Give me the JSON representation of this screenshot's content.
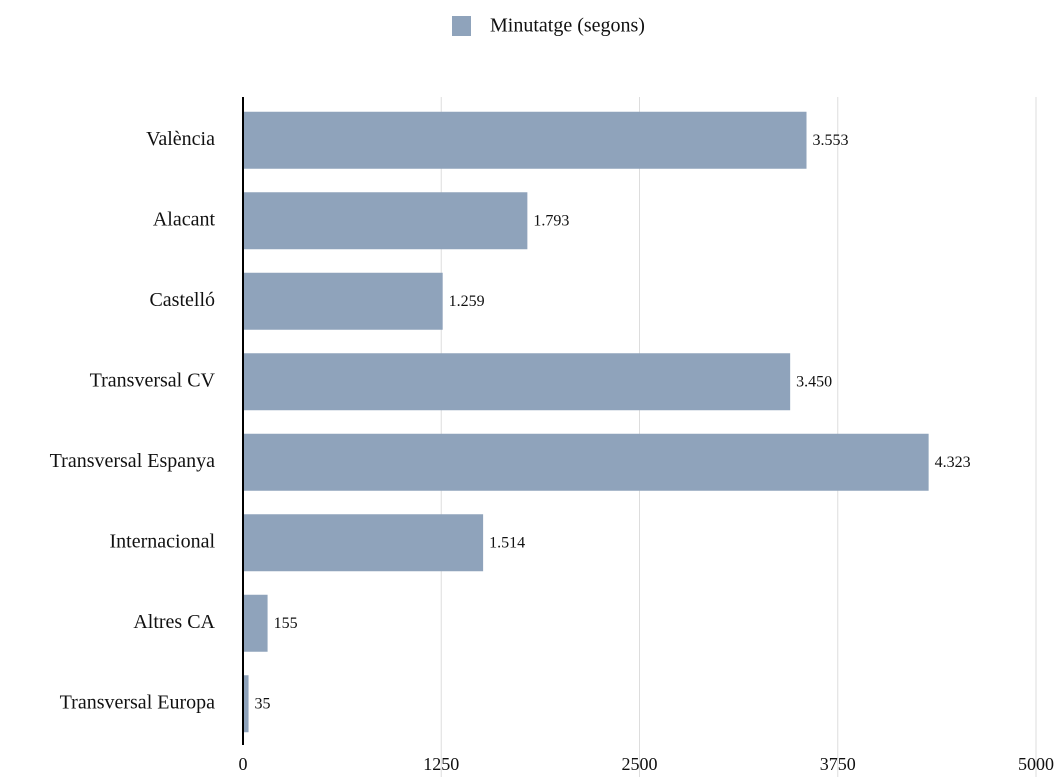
{
  "chart_data": {
    "type": "bar",
    "orientation": "horizontal",
    "categories": [
      "València",
      "Alacant",
      "Castelló",
      "Transversal CV",
      "Transversal Espanya",
      "Internacional",
      "Altres CA",
      "Transversal Europa"
    ],
    "series": [
      {
        "name": "Minutatge (segons)",
        "color": "#8fa3bb",
        "values": [
          3553,
          1793,
          1259,
          3450,
          4323,
          1514,
          155,
          35
        ],
        "value_labels": [
          "3.553",
          "1.793",
          "1.259",
          "3.450",
          "4.323",
          "1.514",
          "155",
          "35"
        ]
      }
    ],
    "xlim": [
      0,
      5000
    ],
    "xticks": [
      0,
      1250,
      2500,
      3750,
      5000
    ],
    "grid": true,
    "legend": "top"
  }
}
